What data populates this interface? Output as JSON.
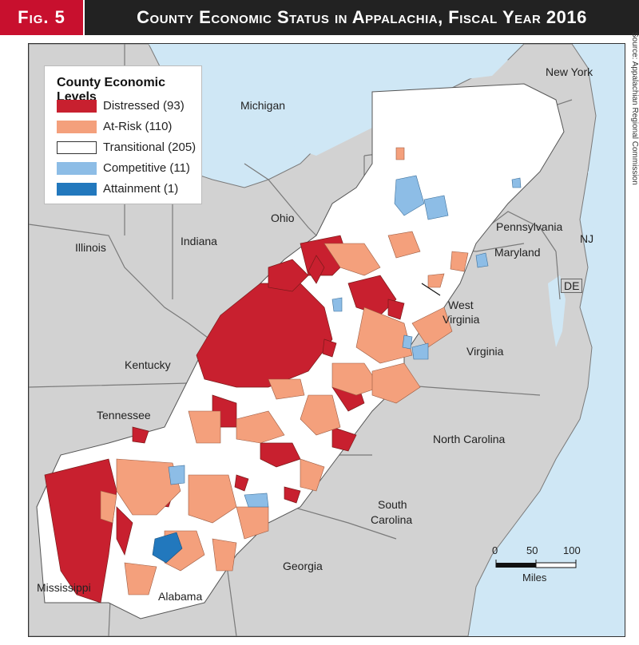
{
  "header": {
    "fig_label": "Fig. 5",
    "title": "County Economic Status in Appalachia, Fiscal Year 2016"
  },
  "source_credit": "Source: Appalachian Regional Commission",
  "legend": {
    "title": "County Economic Levels",
    "items": [
      {
        "label": "Distressed (93)",
        "color": "#c8202f"
      },
      {
        "label": "At-Risk (110)",
        "color": "#f4a07c"
      },
      {
        "label": "Transitional (205)",
        "color": "#ffffff"
      },
      {
        "label": "Competitive (11)",
        "color": "#8dbde6"
      },
      {
        "label": "Attainment (1)",
        "color": "#2278bd"
      }
    ]
  },
  "states": {
    "new_york": "New York",
    "michigan": "Michigan",
    "ohio": "Ohio",
    "illinois": "Illinois",
    "indiana": "Indiana",
    "pennsylvania": "Pennsylvania",
    "nj": "NJ",
    "maryland": "Maryland",
    "de": "DE",
    "west_virginia_1": "West",
    "west_virginia_2": "Virginia",
    "kentucky": "Kentucky",
    "virginia": "Virginia",
    "tennessee": "Tennessee",
    "north_carolina": "North Carolina",
    "south_carolina_1": "South",
    "south_carolina_2": "Carolina",
    "georgia": "Georgia",
    "mississippi": "Mississippi",
    "alabama": "Alabama"
  },
  "scale": {
    "ticks": [
      "0",
      "50",
      "100"
    ],
    "unit": "Miles"
  },
  "colors": {
    "water": "#cfe7f5",
    "land": "#d2d2d2",
    "borders": "#7a7a7a",
    "title_bar": "#222222",
    "fig_tab": "#c8102e"
  }
}
